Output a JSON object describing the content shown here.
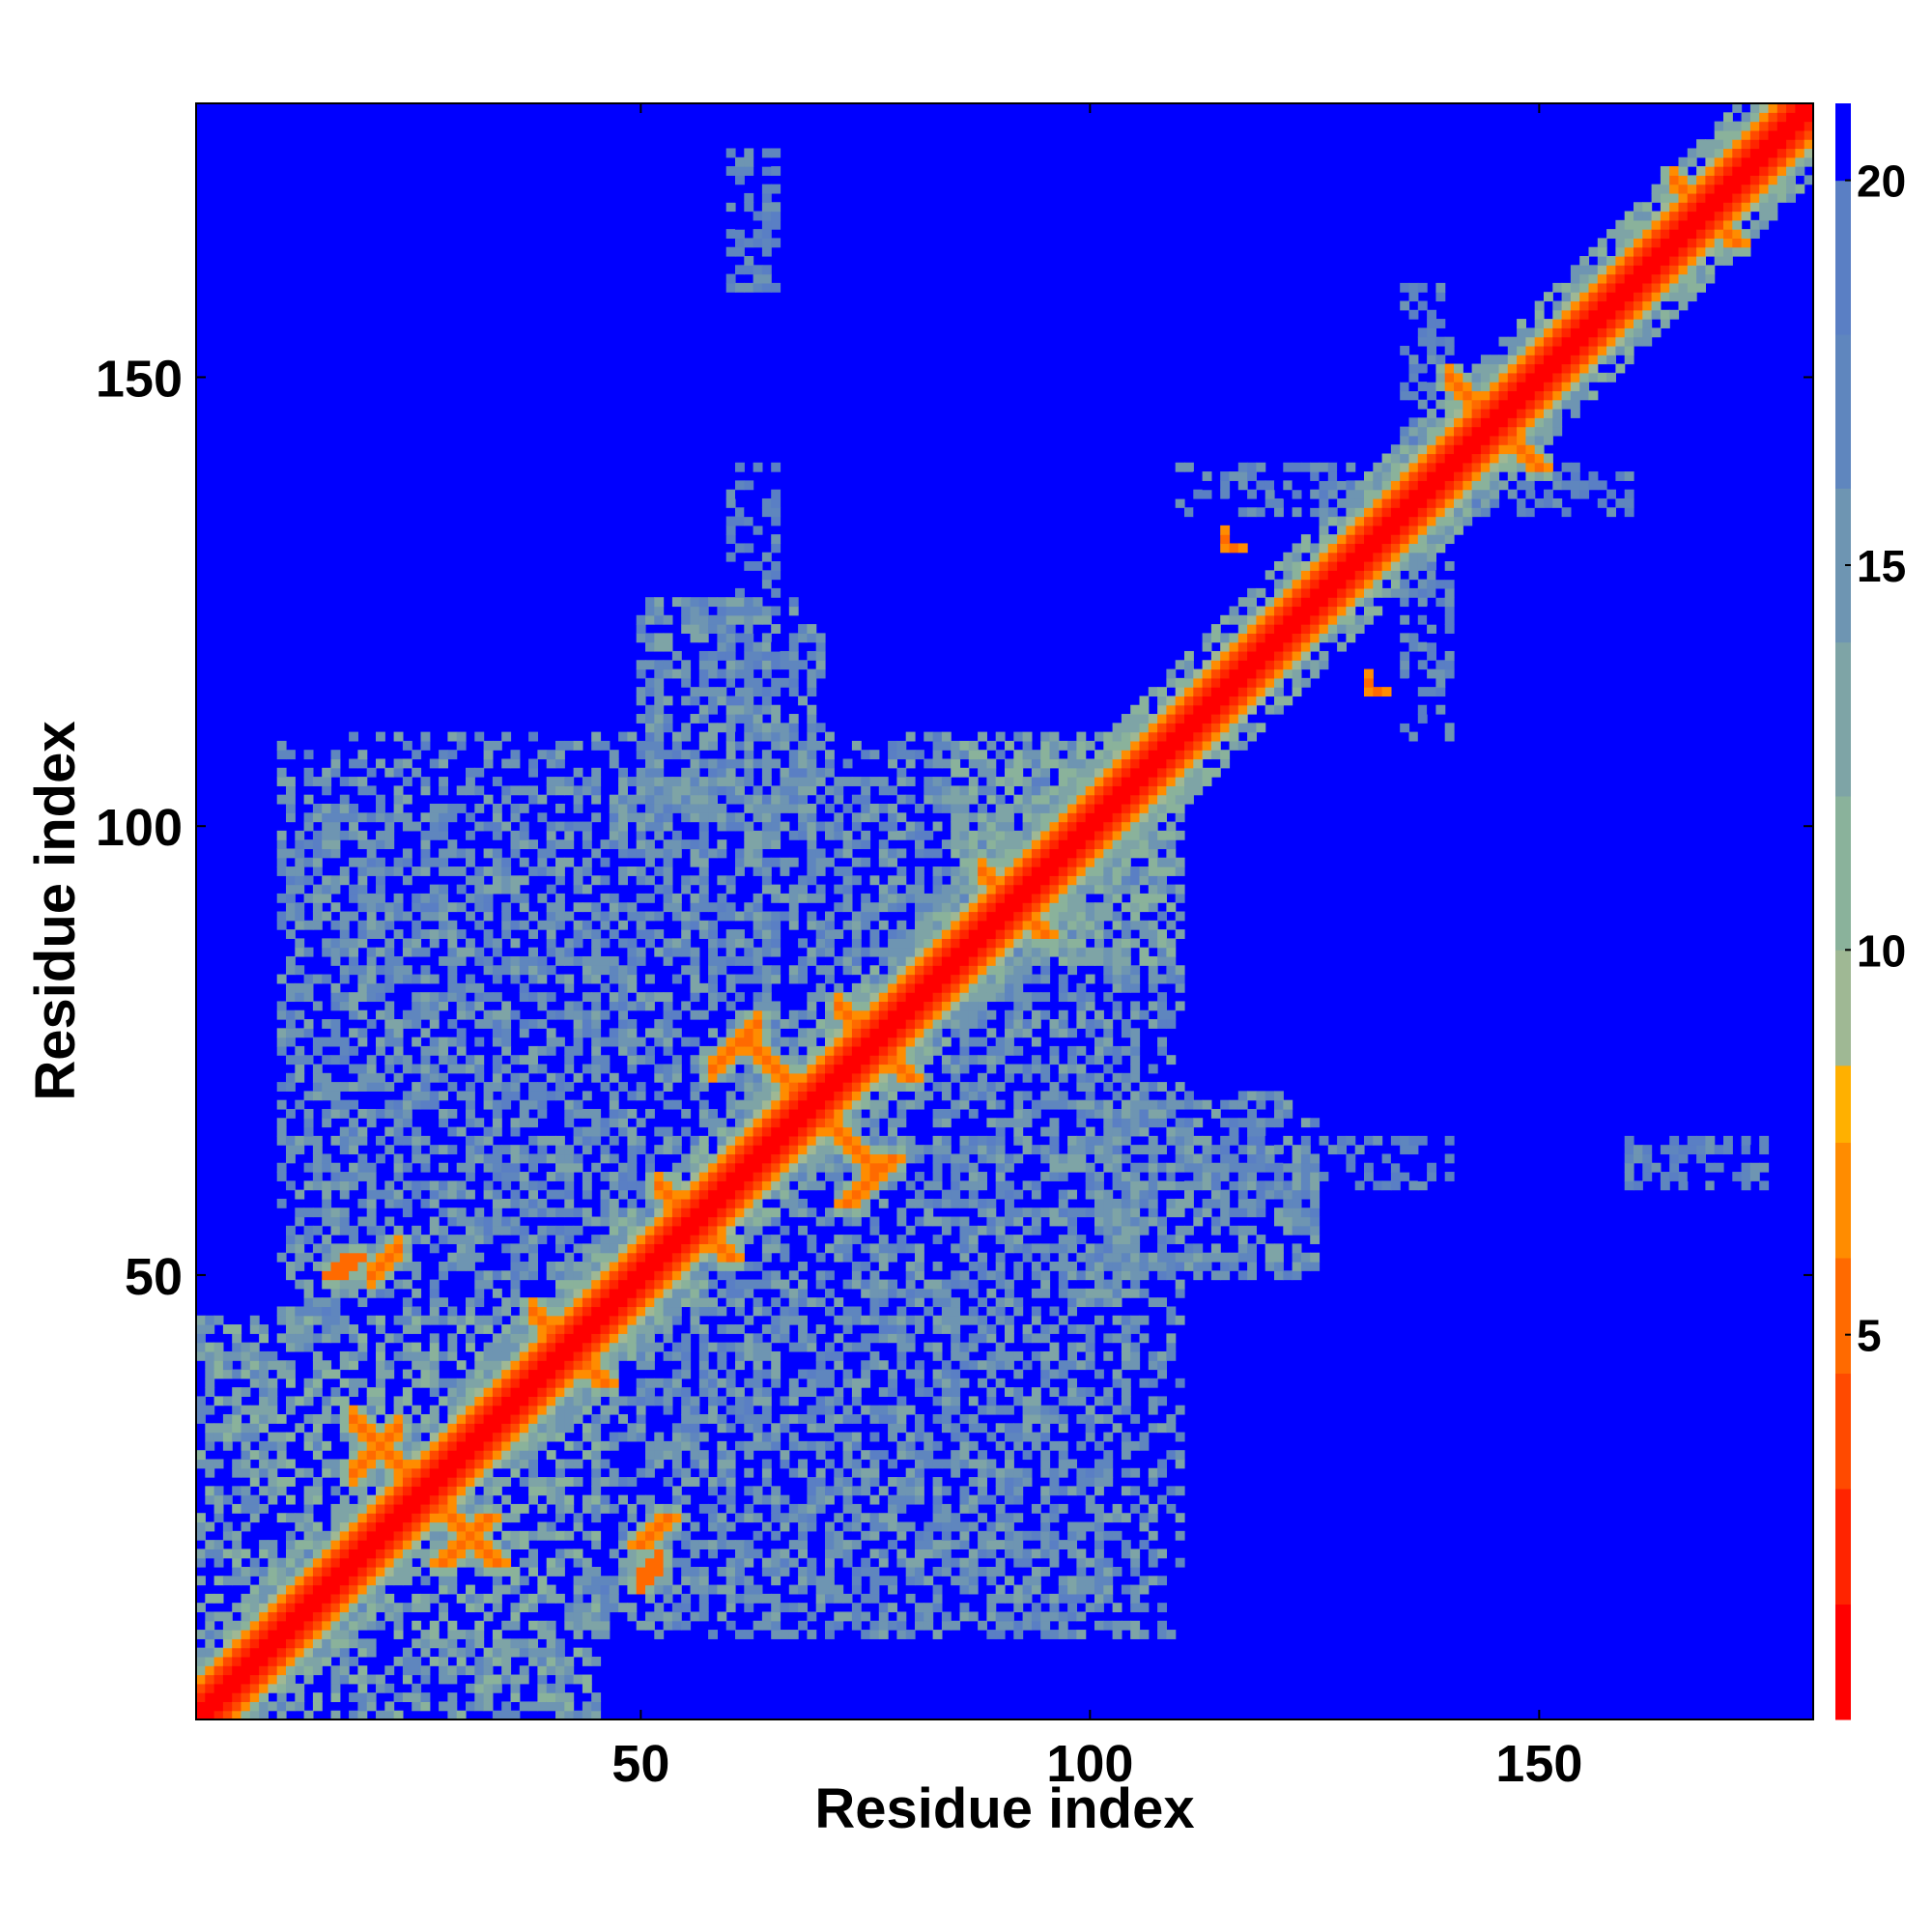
{
  "chart_data": {
    "type": "heatmap",
    "title": "",
    "xlabel": "Residue index",
    "ylabel": "Residue index",
    "n_residues": 180,
    "xlim": [
      1,
      180
    ],
    "ylim": [
      1,
      180
    ],
    "x_ticks": [
      50,
      100,
      150
    ],
    "y_ticks": [
      50,
      100,
      150
    ],
    "colorbar": {
      "range": [
        0,
        21
      ],
      "ticks": [
        5,
        10,
        15,
        20
      ],
      "levels": [
        {
          "to": 1.5,
          "color": "#ff0000"
        },
        {
          "to": 3.0,
          "color": "#ff2400"
        },
        {
          "to": 4.5,
          "color": "#ff4a00"
        },
        {
          "to": 6.0,
          "color": "#ff6a00"
        },
        {
          "to": 7.5,
          "color": "#ff8c00"
        },
        {
          "to": 8.5,
          "color": "#ffb000"
        },
        {
          "to": 10.0,
          "color": "#9fb894"
        },
        {
          "to": 12.0,
          "color": "#8ab29b"
        },
        {
          "to": 14.0,
          "color": "#7ea4a6"
        },
        {
          "to": 16.0,
          "color": "#6e95b2"
        },
        {
          "to": 18.0,
          "color": "#5f86be"
        },
        {
          "to": 20.0,
          "color": "#5a7fc4"
        },
        {
          "to": 21.0,
          "color": "#0000ff"
        }
      ]
    },
    "background_value": 21,
    "contact_features": [
      {
        "i": 18,
        "j": 34,
        "dir": "anti",
        "len": 7,
        "v": 7,
        "w": 6
      },
      {
        "i": 18,
        "j": 28,
        "dir": "para",
        "len": 6,
        "v": 7,
        "w": 6
      },
      {
        "i": 38,
        "j": 46,
        "dir": "anti",
        "len": 5,
        "v": 7,
        "w": 5
      },
      {
        "i": 20,
        "j": 50,
        "dir": "para",
        "len": 4,
        "v": 7,
        "w": 3
      },
      {
        "i": 50,
        "j": 16,
        "dir": "para",
        "len": 3,
        "v": 6,
        "w": 3
      },
      {
        "i": 62,
        "j": 76,
        "dir": "anti",
        "len": 6,
        "v": 7,
        "w": 5
      },
      {
        "i": 58,
        "j": 73,
        "dir": "para",
        "len": 6,
        "v": 7,
        "w": 5
      },
      {
        "i": 72,
        "j": 80,
        "dir": "anti",
        "len": 5,
        "v": 7,
        "w": 5
      },
      {
        "i": 52,
        "j": 60,
        "dir": "anti",
        "len": 5,
        "v": 7,
        "w": 5
      },
      {
        "i": 88,
        "j": 95,
        "dir": "anti",
        "len": 6,
        "v": 7,
        "w": 4
      },
      {
        "i": 140,
        "j": 150,
        "dir": "anti",
        "len": 4,
        "v": 7,
        "w": 4
      },
      {
        "i": 165,
        "j": 172,
        "dir": "anti",
        "len": 4,
        "v": 7,
        "w": 4
      },
      {
        "i": 115,
        "j": 132,
        "dir": "para",
        "len": 1,
        "v": 7,
        "w": 1
      },
      {
        "i": 131,
        "j": 116,
        "dir": "para",
        "len": 1,
        "v": 7,
        "w": 1
      }
    ],
    "domain_blocks": [
      {
        "i": [
          1,
          45
        ],
        "j": [
          1,
          45
        ],
        "v": 13
      },
      {
        "i": [
          10,
          110
        ],
        "j": [
          45,
          105
        ],
        "v": 15
      },
      {
        "i": [
          45,
          110
        ],
        "j": [
          10,
          45
        ],
        "v": 15
      },
      {
        "i": [
          85,
          110
        ],
        "j": [
          85,
          110
        ],
        "v": 12
      },
      {
        "i": [
          50,
          70
        ],
        "j": [
          100,
          125
        ],
        "v": 15
      },
      {
        "i": [
          100,
          125
        ],
        "j": [
          50,
          70
        ],
        "v": 15
      },
      {
        "i": [
          110,
          140
        ],
        "j": [
          60,
          65
        ],
        "v": 17
      },
      {
        "i": [
          60,
          65
        ],
        "j": [
          110,
          140
        ],
        "v": 17
      },
      {
        "i": [
          160,
          175
        ],
        "j": [
          60,
          65
        ],
        "v": 17
      },
      {
        "i": [
          60,
          65
        ],
        "j": [
          160,
          175
        ],
        "v": 17
      },
      {
        "i": [
          135,
          140
        ],
        "j": [
          110,
          160
        ],
        "v": 17
      },
      {
        "i": [
          110,
          160
        ],
        "j": [
          135,
          140
        ],
        "v": 17
      }
    ]
  }
}
